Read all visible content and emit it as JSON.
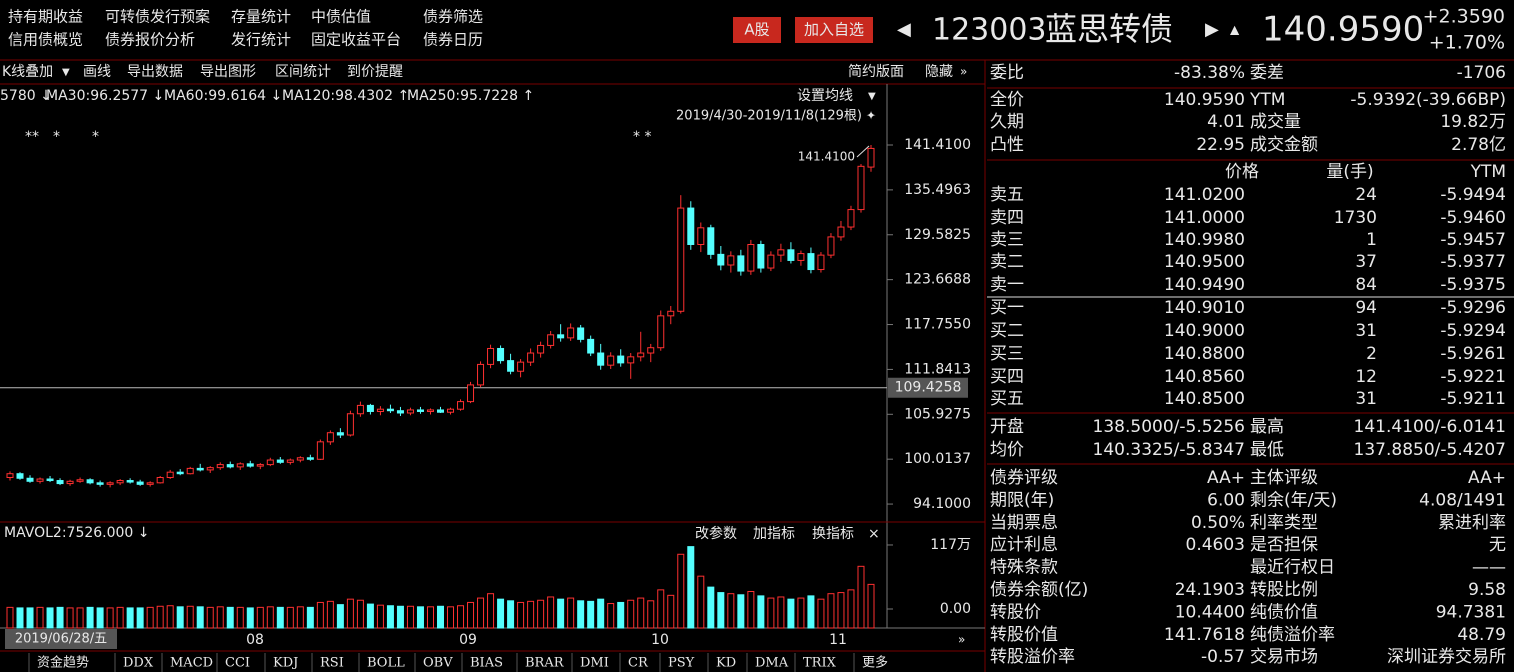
{
  "menu": [
    [
      "持有期收益",
      "可转债发行预案",
      "存量统计",
      "中债估值",
      "债券筛选"
    ],
    [
      "信用债概览",
      "债券报价分析",
      "发行统计",
      "固定收益平台",
      "债券日历"
    ]
  ],
  "buttons": [
    "A股",
    "加入自选"
  ],
  "code": "123003",
  "name": "蓝思转债",
  "price": "140.9590",
  "change": "+2.3590",
  "change_pct": "+1.70%",
  "toolbar": [
    "K线叠加",
    "画线",
    "导出数据",
    "导出图形",
    "区间统计",
    "到价提醒"
  ],
  "toolbar_right": [
    "简约版面",
    "隐藏"
  ],
  "ma_legend": [
    {
      "text": "5780 ↓",
      "color": "#ff44ff"
    },
    {
      "text": "MA30:96.2577 ↓",
      "color": "#33ff33"
    },
    {
      "text": "MA60:99.6164 ↓",
      "color": "#ffffff"
    },
    {
      "text": "MA120:98.4302 ↑",
      "color": "#22ddff"
    },
    {
      "text": "MA250:95.7228 ↑",
      "color": "#ffff44"
    }
  ],
  "set_ma": "设置均线",
  "range": "2019/4/30-2019/11/8(129根)",
  "stars": [
    "**",
    "*",
    "*",
    "* *"
  ],
  "chart": {
    "type": "candlestick",
    "ylim": [
      92,
      146.68
    ],
    "yticks": [
      {
        "value": 141.41,
        "label": "141.4100"
      },
      {
        "value": 135.4963,
        "label": "135.4963"
      },
      {
        "value": 129.5825,
        "label": "129.5825"
      },
      {
        "value": 123.6688,
        "label": "123.6688"
      },
      {
        "value": 117.755,
        "label": "117.7550"
      },
      {
        "value": 111.8413,
        "label": "111.8413"
      },
      {
        "value": 105.9275,
        "label": "105.9275"
      },
      {
        "value": 100.0137,
        "label": "100.0137"
      },
      {
        "value": 94.1,
        "label": "94.1000"
      }
    ],
    "crosshair": {
      "value": 109.4258,
      "label": "109.4258"
    },
    "high": {
      "value": 141.41,
      "label": "141.4100"
    },
    "up_color": "#ff3030",
    "down_color": "#54ffff",
    "candles": [
      [
        97.6,
        98.4,
        97.2,
        98.1
      ],
      [
        98.1,
        98.3,
        97.3,
        97.5
      ],
      [
        97.5,
        97.9,
        96.9,
        97.1
      ],
      [
        97.1,
        97.6,
        96.8,
        97.4
      ],
      [
        97.4,
        97.8,
        97.0,
        97.2
      ],
      [
        97.2,
        97.5,
        96.6,
        96.8
      ],
      [
        96.8,
        97.3,
        96.5,
        97.1
      ],
      [
        97.1,
        97.6,
        96.9,
        97.3
      ],
      [
        97.3,
        97.5,
        96.7,
        96.9
      ],
      [
        96.9,
        97.2,
        96.4,
        96.7
      ],
      [
        96.7,
        97.1,
        96.3,
        96.9
      ],
      [
        96.9,
        97.4,
        96.6,
        97.2
      ],
      [
        97.2,
        97.5,
        96.8,
        97.0
      ],
      [
        97.0,
        97.3,
        96.5,
        96.7
      ],
      [
        96.7,
        97.1,
        96.4,
        96.9
      ],
      [
        96.9,
        97.8,
        96.8,
        97.6
      ],
      [
        97.6,
        98.6,
        97.4,
        98.3
      ],
      [
        98.3,
        98.7,
        97.9,
        98.1
      ],
      [
        98.1,
        99.0,
        98.0,
        98.8
      ],
      [
        98.8,
        99.4,
        98.4,
        98.6
      ],
      [
        98.6,
        99.1,
        98.2,
        98.9
      ],
      [
        98.9,
        99.6,
        98.6,
        99.3
      ],
      [
        99.3,
        99.7,
        98.8,
        99.0
      ],
      [
        99.0,
        99.6,
        98.6,
        99.4
      ],
      [
        99.4,
        99.8,
        98.9,
        99.1
      ],
      [
        99.1,
        99.5,
        98.7,
        99.3
      ],
      [
        99.3,
        100.2,
        99.1,
        99.9
      ],
      [
        99.9,
        100.3,
        99.4,
        99.6
      ],
      [
        99.6,
        100.1,
        99.3,
        99.9
      ],
      [
        99.9,
        100.4,
        99.6,
        100.2
      ],
      [
        100.2,
        100.6,
        99.8,
        100.0
      ],
      [
        100.0,
        102.6,
        99.9,
        102.3
      ],
      [
        102.3,
        103.8,
        101.9,
        103.5
      ],
      [
        103.5,
        104.1,
        102.8,
        103.2
      ],
      [
        103.2,
        106.4,
        103.0,
        106.0
      ],
      [
        106.0,
        107.6,
        105.6,
        107.1
      ],
      [
        107.1,
        107.3,
        105.9,
        106.3
      ],
      [
        106.3,
        107.0,
        105.8,
        106.6
      ],
      [
        106.6,
        107.2,
        106.1,
        106.4
      ],
      [
        106.4,
        106.9,
        105.7,
        106.1
      ],
      [
        106.1,
        106.8,
        105.8,
        106.5
      ],
      [
        106.5,
        106.9,
        106.0,
        106.3
      ],
      [
        106.3,
        106.7,
        105.9,
        106.5
      ],
      [
        106.5,
        106.9,
        106.1,
        106.2
      ],
      [
        106.2,
        106.8,
        105.9,
        106.6
      ],
      [
        106.6,
        107.9,
        106.4,
        107.6
      ],
      [
        107.6,
        110.2,
        107.4,
        109.8
      ],
      [
        109.8,
        112.9,
        109.5,
        112.5
      ],
      [
        112.5,
        115.1,
        112.0,
        114.6
      ],
      [
        114.6,
        115.0,
        112.6,
        113.0
      ],
      [
        113.0,
        113.9,
        111.2,
        111.6
      ],
      [
        111.6,
        113.2,
        110.8,
        112.8
      ],
      [
        112.8,
        114.6,
        112.3,
        114.0
      ],
      [
        114.0,
        115.5,
        113.4,
        115.0
      ],
      [
        115.0,
        116.9,
        114.6,
        116.4
      ],
      [
        116.4,
        117.8,
        115.5,
        116.0
      ],
      [
        116.0,
        117.9,
        115.6,
        117.3
      ],
      [
        117.3,
        117.7,
        115.4,
        115.8
      ],
      [
        115.8,
        116.3,
        113.6,
        114.0
      ],
      [
        114.0,
        115.2,
        111.8,
        112.4
      ],
      [
        112.4,
        114.1,
        111.9,
        113.6
      ],
      [
        113.6,
        114.5,
        112.2,
        112.7
      ],
      [
        112.7,
        114.0,
        110.6,
        113.5
      ],
      [
        113.5,
        116.8,
        112.9,
        114.0
      ],
      [
        114.0,
        115.2,
        112.8,
        114.7
      ],
      [
        114.7,
        119.6,
        114.3,
        118.9
      ],
      [
        118.9,
        120.2,
        117.8,
        119.5
      ],
      [
        119.5,
        134.8,
        119.2,
        133.1
      ],
      [
        133.1,
        134.0,
        127.6,
        128.3
      ],
      [
        128.3,
        131.2,
        127.3,
        130.5
      ],
      [
        130.5,
        130.9,
        126.4,
        127.0
      ],
      [
        127.0,
        128.1,
        124.9,
        125.6
      ],
      [
        125.6,
        127.4,
        124.6,
        126.8
      ],
      [
        126.8,
        127.6,
        124.2,
        124.8
      ],
      [
        124.8,
        128.9,
        124.3,
        128.3
      ],
      [
        128.3,
        128.8,
        124.6,
        125.2
      ],
      [
        125.2,
        127.4,
        124.8,
        126.9
      ],
      [
        126.9,
        128.4,
        126.0,
        127.6
      ],
      [
        127.6,
        128.6,
        125.8,
        126.2
      ],
      [
        126.2,
        127.5,
        125.5,
        127.1
      ],
      [
        127.1,
        127.9,
        124.5,
        125.0
      ],
      [
        125.0,
        127.3,
        124.6,
        126.9
      ],
      [
        126.9,
        129.8,
        126.5,
        129.3
      ],
      [
        129.3,
        131.4,
        128.8,
        130.6
      ],
      [
        130.6,
        133.4,
        130.2,
        132.9
      ],
      [
        132.9,
        138.9,
        132.5,
        138.6
      ],
      [
        138.5,
        141.41,
        137.885,
        140.959
      ]
    ],
    "vol_label": "MAVOL2:7526.000 ↓",
    "vol_buttons": [
      "改参数",
      "加指标",
      "换指标",
      "×"
    ],
    "vol_ylim": [
      -34.7,
      126.1
    ],
    "vol_yticks": [
      {
        "value": 117,
        "label": "117万"
      },
      {
        "value": 0,
        "label": "0.00"
      }
    ],
    "volumes": [
      3,
      2,
      2,
      3,
      2,
      3,
      2,
      2,
      3,
      2,
      2,
      3,
      2,
      2,
      3,
      5,
      6,
      4,
      5,
      4,
      3,
      4,
      3,
      3,
      2,
      3,
      4,
      3,
      3,
      4,
      3,
      12,
      14,
      8,
      18,
      16,
      9,
      7,
      6,
      5,
      5,
      4,
      4,
      5,
      4,
      6,
      12,
      20,
      28,
      18,
      15,
      12,
      14,
      16,
      22,
      18,
      20,
      15,
      14,
      18,
      10,
      12,
      16,
      20,
      15,
      35,
      25,
      100,
      114,
      60,
      40,
      30,
      28,
      26,
      32,
      24,
      20,
      22,
      18,
      20,
      24,
      18,
      28,
      30,
      35,
      78,
      45
    ],
    "cursor_date": "2019/06/28/五",
    "months": [
      "08",
      "09",
      "10",
      "11"
    ]
  },
  "tabs": [
    "资金趋势",
    "DDX",
    "MACD",
    "CCI",
    "KDJ",
    "RSI",
    "BOLL",
    "OBV",
    "BIAS",
    "BRAR",
    "DMI",
    "CR",
    "PSY",
    "KD",
    "DMA",
    "TRIX",
    "更多"
  ],
  "quote": {
    "top": [
      [
        "委比",
        "-83.38%",
        "委差",
        "-1706"
      ]
    ],
    "stats": [
      [
        "全价",
        "140.9590",
        "YTM",
        "-5.9392(-39.66BP)"
      ],
      [
        "久期",
        "4.01",
        "成交量",
        "19.82万"
      ],
      [
        "凸性",
        "22.95",
        "成交金额",
        "2.78亿"
      ]
    ],
    "book_header": [
      "价格",
      "量(手)",
      "YTM"
    ],
    "asks": [
      [
        "卖五",
        "141.0200",
        "24",
        "-5.9494"
      ],
      [
        "卖四",
        "141.0000",
        "1730",
        "-5.9460"
      ],
      [
        "卖三",
        "140.9980",
        "1",
        "-5.9457"
      ],
      [
        "卖二",
        "140.9500",
        "37",
        "-5.9377"
      ],
      [
        "卖一",
        "140.9490",
        "84",
        "-5.9375"
      ]
    ],
    "bids": [
      [
        "买一",
        "140.9010",
        "94",
        "-5.9296"
      ],
      [
        "买二",
        "140.9000",
        "31",
        "-5.9294"
      ],
      [
        "买三",
        "140.8800",
        "2",
        "-5.9261"
      ],
      [
        "买四",
        "140.8560",
        "12",
        "-5.9221"
      ],
      [
        "买五",
        "140.8500",
        "31",
        "-5.9211"
      ]
    ],
    "ohlc": [
      [
        "开盘",
        "138.5000/-5.5256",
        "最高",
        "141.4100/-6.0141"
      ],
      [
        "均价",
        "140.3325/-5.8347",
        "最低",
        "137.8850/-5.4207"
      ]
    ],
    "info": [
      [
        "债券评级",
        "AA+",
        "主体评级",
        "AA+"
      ],
      [
        "期限(年)",
        "6.00",
        "剩余(年/天)",
        "4.08/1491"
      ],
      [
        "当期票息",
        "0.50%",
        "利率类型",
        "累进利率"
      ],
      [
        "应计利息",
        "0.4603",
        "是否担保",
        "无"
      ],
      [
        "特殊条款",
        null,
        "最近行权日",
        "——"
      ],
      [
        "债券余额(亿)",
        "24.1903",
        "转股比例",
        "9.58"
      ],
      [
        "转股价",
        "10.4400",
        "纯债价值",
        "94.7381"
      ],
      [
        "转股价值",
        "141.7618",
        "纯债溢价率",
        "48.79"
      ],
      [
        "转股溢价率",
        "-0.57",
        "交易市场",
        "深圳证券交易所"
      ]
    ]
  }
}
